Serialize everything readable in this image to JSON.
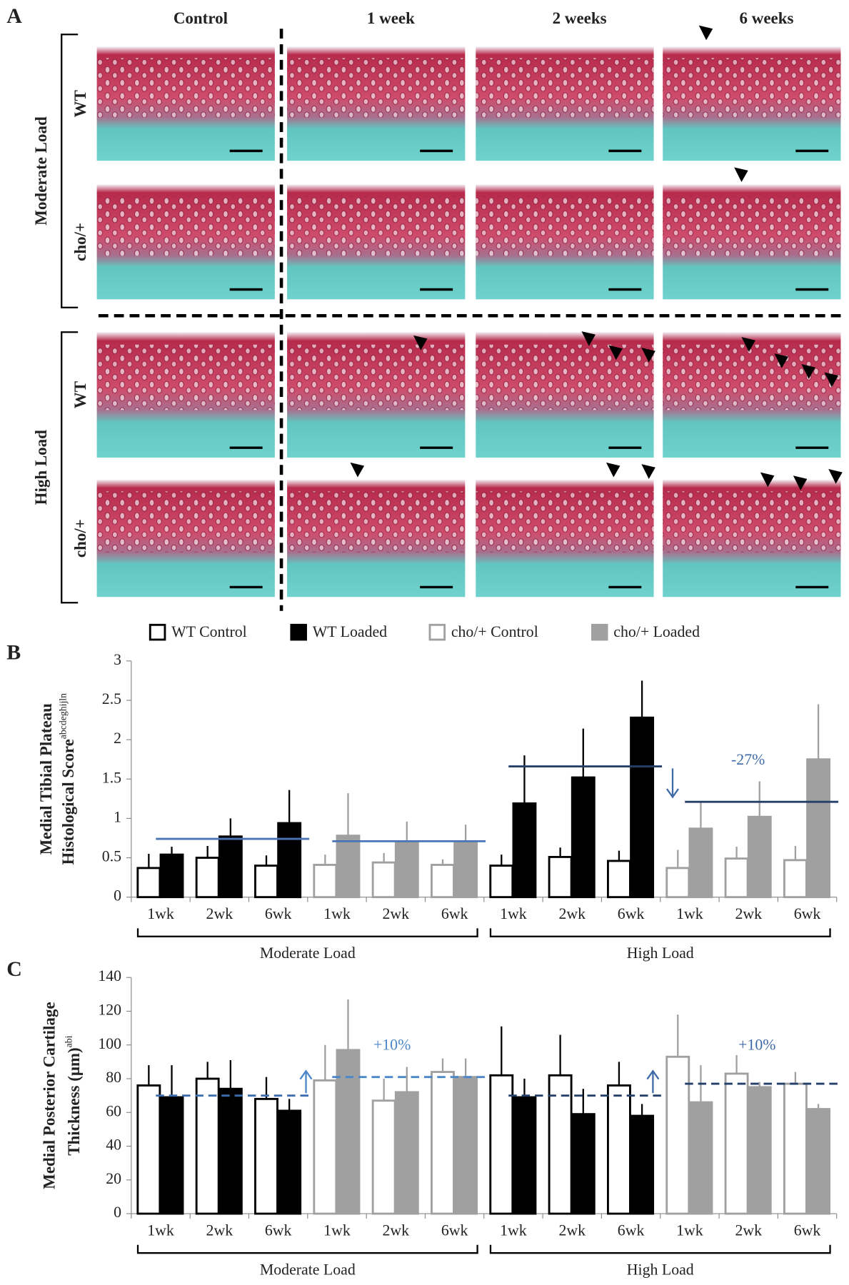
{
  "panel_a": {
    "label": "A",
    "columns": [
      "Control",
      "1 week",
      "2 weeks",
      "6 weeks"
    ],
    "load_groups": [
      {
        "label": "Moderate Load",
        "rows": [
          "WT",
          "cho/+"
        ]
      },
      {
        "label": "High Load",
        "rows": [
          "WT",
          "cho/+"
        ]
      }
    ]
  },
  "chart_data": [
    {
      "type": "bar",
      "panel_label": "B",
      "ylabel": [
        "Medial Tibial Plateau",
        "Histological Score"
      ],
      "ylabel_superscript": "abcdeghijln",
      "categories": [
        "1wk",
        "2wk",
        "6wk",
        "1wk",
        "2wk",
        "6wk",
        "1wk",
        "2wk",
        "6wk",
        "1wk",
        "2wk",
        "6wk"
      ],
      "group_labels": [
        "Moderate Load",
        "High Load"
      ],
      "series": [
        {
          "name": "WT Control",
          "color": "#000000",
          "fill": "#ffffff",
          "values": [
            0.37,
            0.5,
            0.4,
            null,
            null,
            null,
            0.4,
            0.51,
            0.46,
            null,
            null,
            null
          ],
          "errors": [
            0.18,
            0.15,
            0.13,
            null,
            null,
            null,
            0.14,
            0.12,
            0.13,
            null,
            null,
            null
          ]
        },
        {
          "name": "WT Loaded",
          "color": "#000000",
          "fill": "#000000",
          "values": [
            0.54,
            0.77,
            0.94,
            null,
            null,
            null,
            1.19,
            1.52,
            2.28,
            null,
            null,
            null
          ],
          "errors": [
            0.1,
            0.23,
            0.42,
            null,
            null,
            null,
            0.61,
            0.62,
            0.47,
            null,
            null,
            null
          ]
        },
        {
          "name": "cho/+ Control",
          "color": "#a0a0a0",
          "fill": "#ffffff",
          "values": [
            null,
            null,
            null,
            0.41,
            0.44,
            0.41,
            null,
            null,
            null,
            0.37,
            0.49,
            0.47
          ],
          "errors": [
            null,
            null,
            null,
            0.13,
            0.12,
            0.07,
            null,
            null,
            null,
            0.23,
            0.15,
            0.18
          ]
        },
        {
          "name": "cho/+ Loaded",
          "color": "#a0a0a0",
          "fill": "#a0a0a0",
          "values": [
            null,
            null,
            null,
            0.78,
            0.69,
            0.69,
            null,
            null,
            null,
            0.87,
            1.02,
            1.75
          ],
          "errors": [
            null,
            null,
            null,
            0.54,
            0.27,
            0.23,
            null,
            null,
            null,
            0.33,
            0.45,
            0.7
          ]
        }
      ],
      "ylim": [
        0,
        3
      ],
      "yticks": [
        0,
        0.5,
        1,
        1.5,
        2,
        2.5,
        3
      ],
      "legend": "top",
      "reference_lines": [
        {
          "value": 0.74,
          "color": "#4a76b5"
        },
        {
          "value": 0.71,
          "color": "#4a76b5"
        },
        {
          "value": 1.66,
          "color": "#253f6b"
        },
        {
          "value": 1.21,
          "color": "#253f6b"
        }
      ],
      "reference_dashed": false,
      "annotations": [
        {
          "text": "-27%",
          "color": "#3f6aa8"
        }
      ]
    },
    {
      "type": "bar",
      "panel_label": "C",
      "ylabel": [
        "Medial Posterior Cartilage",
        "Thickness (μm)"
      ],
      "ylabel_superscript": "abi",
      "categories": [
        "1wk",
        "2wk",
        "6wk",
        "1wk",
        "2wk",
        "6wk",
        "1wk",
        "2wk",
        "6wk",
        "1wk",
        "2wk",
        "6wk"
      ],
      "group_labels": [
        "Moderate Load",
        "High Load"
      ],
      "series": [
        {
          "color": "#000000",
          "fill": "#ffffff",
          "values": [
            76,
            80,
            68,
            null,
            null,
            null,
            82,
            82,
            76,
            null,
            null,
            null
          ],
          "errors": [
            12,
            10,
            13,
            null,
            null,
            null,
            29,
            24,
            14,
            null,
            null,
            null
          ]
        },
        {
          "color": "#000000",
          "fill": "#000000",
          "values": [
            69,
            74,
            61,
            null,
            null,
            null,
            69,
            59,
            58,
            null,
            null,
            null
          ],
          "errors": [
            19,
            17,
            7,
            null,
            null,
            null,
            11,
            15,
            7,
            null,
            null,
            null
          ]
        },
        {
          "color": "#a0a0a0",
          "fill": "#ffffff",
          "values": [
            null,
            null,
            null,
            79,
            67,
            84,
            null,
            null,
            null,
            93,
            83,
            77
          ],
          "errors": [
            null,
            null,
            null,
            21,
            13,
            8,
            null,
            null,
            null,
            25,
            11,
            7
          ]
        },
        {
          "color": "#a0a0a0",
          "fill": "#a0a0a0",
          "values": [
            null,
            null,
            null,
            97,
            72,
            81,
            null,
            null,
            null,
            66,
            75,
            62
          ],
          "errors": [
            null,
            null,
            null,
            30,
            15,
            11,
            null,
            null,
            null,
            22,
            3,
            3
          ]
        }
      ],
      "ylim": [
        0,
        140
      ],
      "yticks": [
        0,
        20,
        40,
        60,
        80,
        100,
        120,
        140
      ],
      "reference_lines": [
        {
          "value": 70,
          "color": "#3b6db0"
        },
        {
          "value": 81,
          "color": "#4a86c8"
        },
        {
          "value": 70,
          "color": "#253f6b"
        },
        {
          "value": 77,
          "color": "#253f6b"
        }
      ],
      "reference_dashed": true,
      "annotations": [
        {
          "text": "+10%",
          "color": "#4a86c8"
        },
        {
          "text": "+10%",
          "color": "#3f6aa8"
        }
      ]
    }
  ]
}
